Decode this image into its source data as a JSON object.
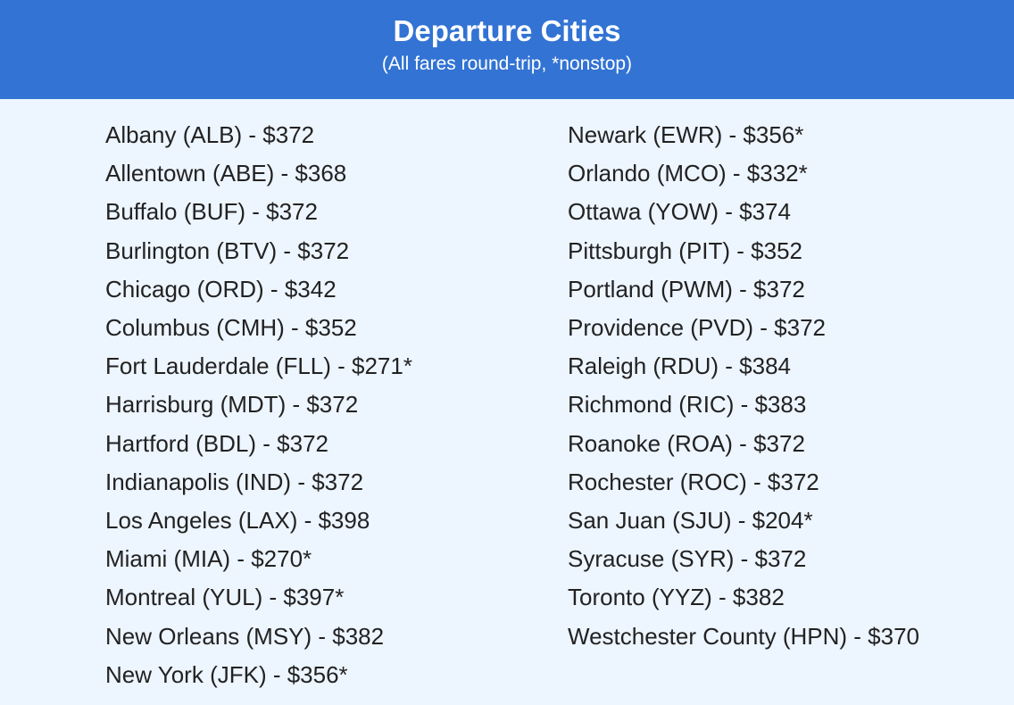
{
  "header": {
    "title": "Departure Cities",
    "subtitle": "(All fares round-trip, *nonstop)",
    "background_color": "#3273D3"
  },
  "cities_left": [
    "Albany (ALB) - $372",
    "Allentown (ABE) - $368",
    "Buffalo (BUF) - $372",
    "Burlington (BTV) - $372",
    "Chicago (ORD) - $342",
    "Columbus (CMH) - $352",
    "Fort Lauderdale (FLL) - $271*",
    "Harrisburg (MDT) - $372",
    "Hartford (BDL) - $372",
    "Indianapolis (IND) - $372",
    "Los Angeles (LAX) - $398",
    "Miami (MIA) - $270*",
    "Montreal (YUL) - $397*",
    "New Orleans (MSY) - $382",
    "New York (JFK) - $356*"
  ],
  "cities_right": [
    "Newark (EWR) - $356*",
    "Orlando (MCO) - $332*",
    "Ottawa (YOW) - $374",
    "Pittsburgh (PIT) - $352",
    "Portland (PWM) - $372",
    "Providence (PVD) - $372",
    "Raleigh (RDU) - $384",
    "Richmond (RIC) - $383",
    "Roanoke (ROA) - $372",
    "Rochester (ROC) - $372",
    "San Juan (SJU) - $204*",
    "Syracuse (SYR) - $372",
    "Toronto (YYZ) - $382",
    "Westchester County (HPN) - $370"
  ]
}
